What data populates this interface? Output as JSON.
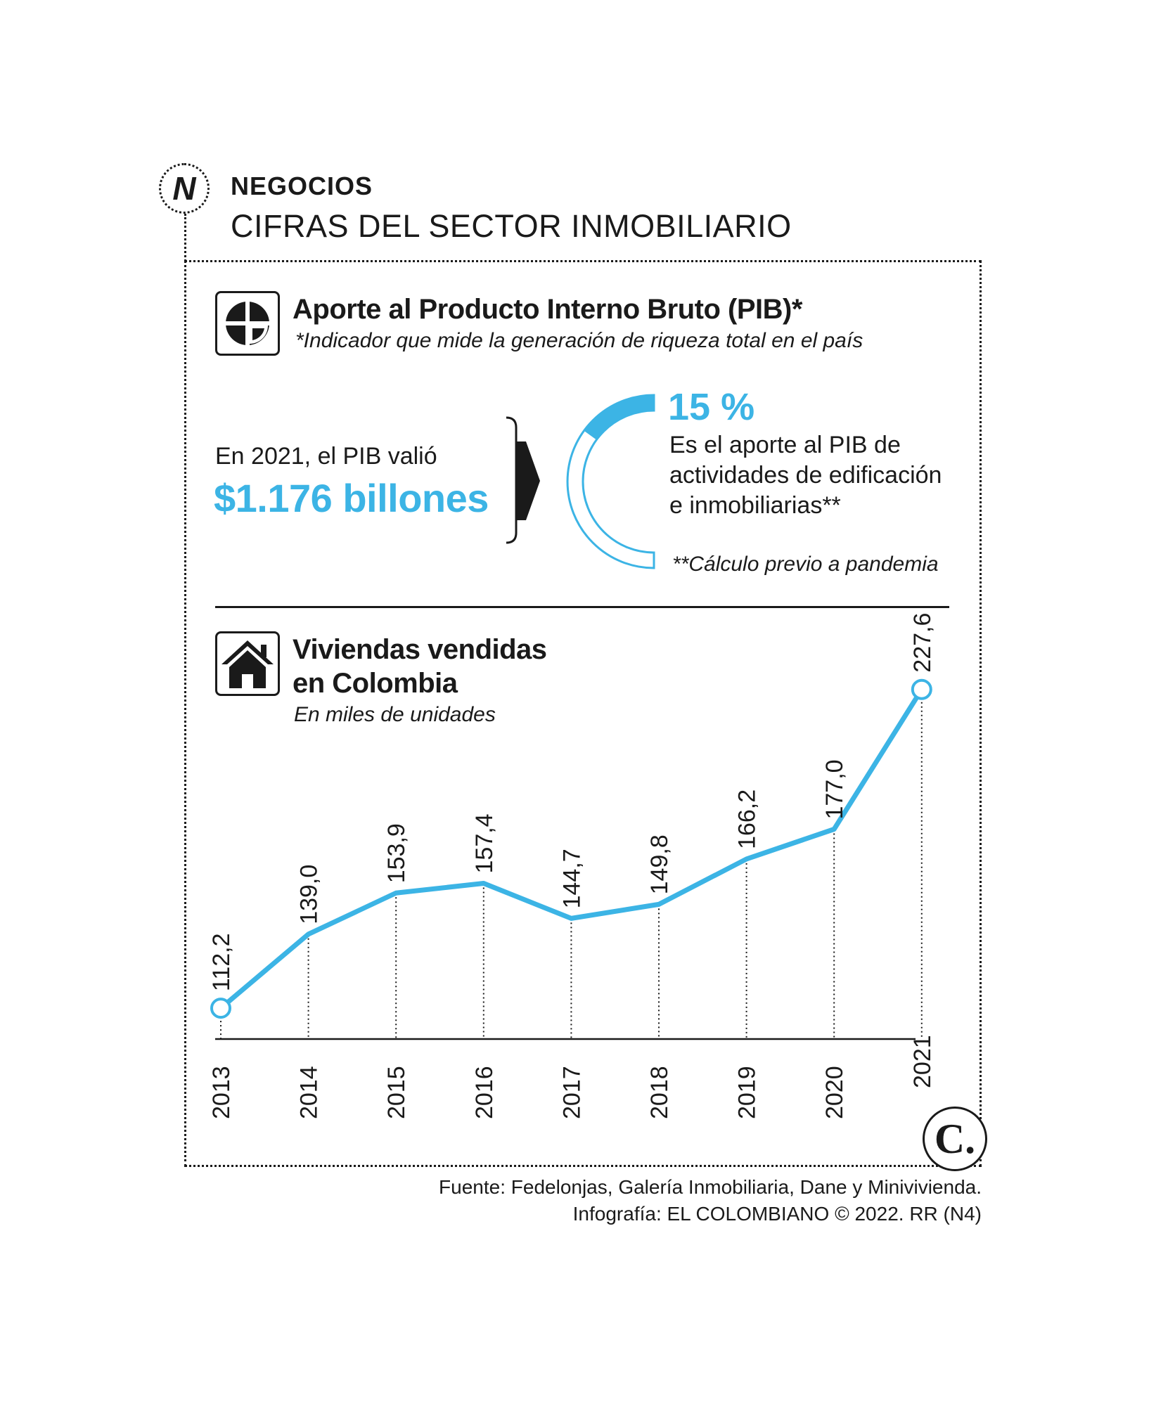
{
  "header": {
    "section": "NEGOCIOS",
    "title": "CIFRAS DEL SECTOR INMOBILIARIO",
    "logo_letter": "N"
  },
  "pib": {
    "title": "Aporte al Producto Interno Bruto (PIB)*",
    "subtitle": "*Indicador que mide la generación de riqueza total en el país",
    "intro": "En 2021, el PIB valió",
    "value": "$1.176 billones",
    "percent_label": "15 %",
    "percent": 15,
    "desc_lines": [
      "Es el aporte al PIB de",
      "actividades de edificación",
      "e inmobiliarias**"
    ],
    "note": "**Cálculo previo a pandemia",
    "accent": "#3cb4e5"
  },
  "chart_data": {
    "type": "line",
    "title": "Viviendas vendidas en Colombia",
    "title_lines": [
      "Viviendas vendidas",
      "en Colombia"
    ],
    "subtitle": "En miles de unidades",
    "x": [
      "2013",
      "2014",
      "2015",
      "2016",
      "2017",
      "2018",
      "2019",
      "2020",
      "2021"
    ],
    "values": [
      112.2,
      139.0,
      153.9,
      157.4,
      144.7,
      149.8,
      166.2,
      177.0,
      227.6
    ],
    "labels": [
      "112,2",
      "139,0",
      "153,9",
      "157,4",
      "144,7",
      "149,8",
      "166,2",
      "177,0",
      "227,6"
    ],
    "ylim": [
      100,
      240
    ],
    "color": "#3cb4e5",
    "grid": false
  },
  "footer": {
    "source": "Fuente: Fedelonjas, Galería Inmobiliaria, Dane y Minivivienda.",
    "credit": "Infografía: EL COLOMBIANO © 2022. RR (N4)",
    "logo_letter": "C."
  }
}
